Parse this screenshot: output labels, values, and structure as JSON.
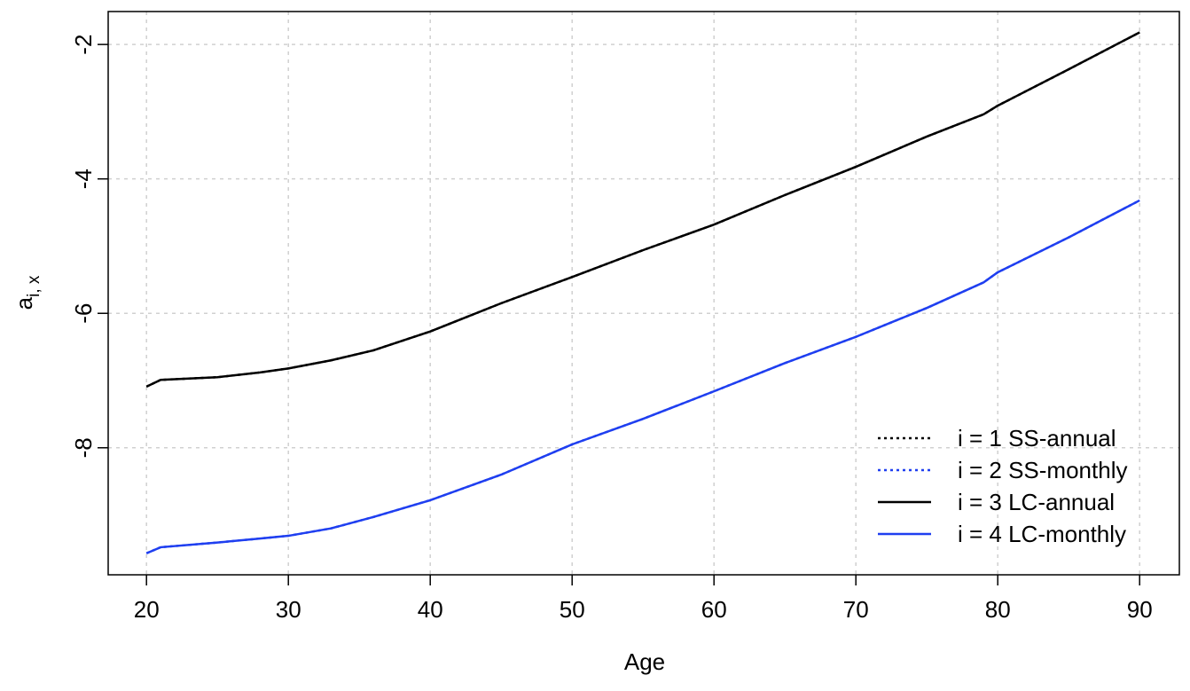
{
  "chart_data": {
    "type": "line",
    "xlabel": "Age",
    "ylabel": {
      "base": "a",
      "subscript": "i, x"
    },
    "x": [
      20,
      21,
      25,
      28,
      30,
      33,
      36,
      40,
      45,
      50,
      55,
      60,
      65,
      70,
      75,
      79,
      80,
      85,
      90
    ],
    "series": [
      {
        "name": "i = 1 SS-annual",
        "color": "#000000",
        "linestyle": "dotted",
        "values": [
          -7.09,
          -6.99,
          -6.95,
          -6.88,
          -6.82,
          -6.7,
          -6.55,
          -6.27,
          -5.85,
          -5.46,
          -5.06,
          -4.68,
          -4.24,
          -3.82,
          -3.37,
          -3.04,
          -2.91,
          -2.37,
          -1.82
        ]
      },
      {
        "name": "i = 2 SS-monthly",
        "color": "#1f3ff0",
        "linestyle": "dotted",
        "values": [
          -9.57,
          -9.48,
          -9.41,
          -9.35,
          -9.31,
          -9.2,
          -9.03,
          -8.78,
          -8.4,
          -7.95,
          -7.57,
          -7.16,
          -6.74,
          -6.35,
          -5.92,
          -5.54,
          -5.39,
          -4.87,
          -4.32
        ]
      },
      {
        "name": "i = 3 LC-annual",
        "color": "#000000",
        "linestyle": "solid",
        "values": [
          -7.09,
          -6.99,
          -6.95,
          -6.88,
          -6.82,
          -6.7,
          -6.55,
          -6.27,
          -5.85,
          -5.46,
          -5.06,
          -4.68,
          -4.24,
          -3.82,
          -3.37,
          -3.04,
          -2.91,
          -2.37,
          -1.82
        ]
      },
      {
        "name": "i = 4 LC-monthly",
        "color": "#1f3ff0",
        "linestyle": "solid",
        "values": [
          -9.57,
          -9.48,
          -9.41,
          -9.35,
          -9.31,
          -9.2,
          -9.03,
          -8.78,
          -8.4,
          -7.95,
          -7.57,
          -7.16,
          -6.74,
          -6.35,
          -5.92,
          -5.54,
          -5.39,
          -4.87,
          -4.32
        ]
      }
    ],
    "xlim": [
      17.3,
      92.8
    ],
    "xticks": [
      20,
      30,
      40,
      50,
      60,
      70,
      80,
      90
    ],
    "ylim": [
      -9.89,
      -1.51
    ],
    "yticks": [
      -2,
      -4,
      -6,
      -8
    ],
    "grid": true,
    "legend": "bottom-right"
  }
}
